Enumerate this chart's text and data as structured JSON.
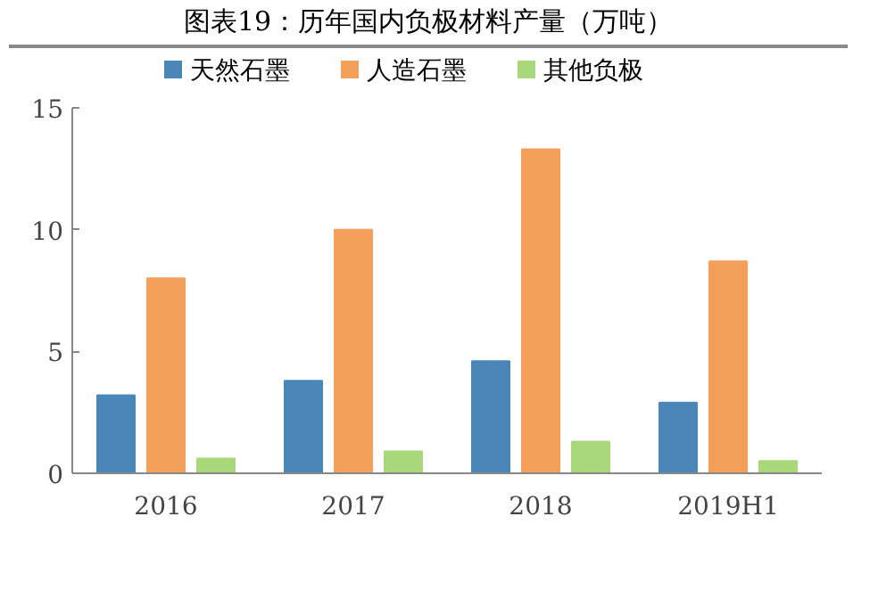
{
  "chart_data": {
    "type": "bar",
    "title": "图表19：历年国内负极材料产量（万吨）",
    "categories": [
      "2016",
      "2017",
      "2018",
      "2019H1"
    ],
    "series": [
      {
        "name": "天然石墨",
        "color": "#4a86b8",
        "values": [
          3.2,
          3.8,
          4.6,
          2.9
        ]
      },
      {
        "name": "人造石墨",
        "color": "#f4a05a",
        "values": [
          8.0,
          10.0,
          13.3,
          8.7
        ]
      },
      {
        "name": "其他负极",
        "color": "#a8d87a",
        "values": [
          0.6,
          0.9,
          1.3,
          0.5
        ]
      }
    ],
    "ylim": [
      0,
      15
    ],
    "yticks": [
      0,
      5,
      10,
      15
    ],
    "grid": false,
    "legend": "top"
  }
}
